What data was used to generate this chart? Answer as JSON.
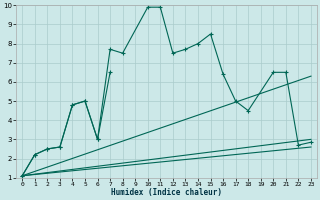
{
  "xlabel": "Humidex (Indice chaleur)",
  "background_color": "#cce8e8",
  "grid_color": "#aacccc",
  "line_color": "#006655",
  "xlim": [
    -0.5,
    23.5
  ],
  "ylim": [
    1,
    10
  ],
  "xticks": [
    0,
    1,
    2,
    3,
    4,
    5,
    6,
    7,
    8,
    9,
    10,
    11,
    12,
    13,
    14,
    15,
    16,
    17,
    18,
    19,
    20,
    21,
    22,
    23
  ],
  "yticks": [
    1,
    2,
    3,
    4,
    5,
    6,
    7,
    8,
    9,
    10
  ],
  "x_main": [
    0,
    1,
    2,
    3,
    4,
    5,
    6,
    7,
    8,
    10,
    11,
    12,
    13,
    14,
    15,
    16,
    17,
    18,
    20,
    21,
    22,
    23
  ],
  "y_main": [
    1.1,
    2.2,
    2.5,
    2.6,
    4.8,
    5.0,
    3.0,
    7.7,
    7.5,
    9.9,
    9.9,
    7.5,
    7.7,
    8.0,
    8.5,
    6.4,
    5.0,
    4.5,
    6.5,
    6.5,
    2.7,
    2.85
  ],
  "x_sec": [
    0,
    1,
    2,
    3,
    4,
    5,
    6,
    7
  ],
  "y_sec": [
    1.1,
    2.2,
    2.5,
    2.6,
    4.8,
    5.0,
    3.0,
    6.5
  ],
  "straight_lines": [
    {
      "x": [
        0,
        23
      ],
      "y": [
        1.1,
        6.3
      ]
    },
    {
      "x": [
        0,
        23
      ],
      "y": [
        1.1,
        3.0
      ]
    },
    {
      "x": [
        0,
        23
      ],
      "y": [
        1.1,
        2.6
      ]
    }
  ]
}
